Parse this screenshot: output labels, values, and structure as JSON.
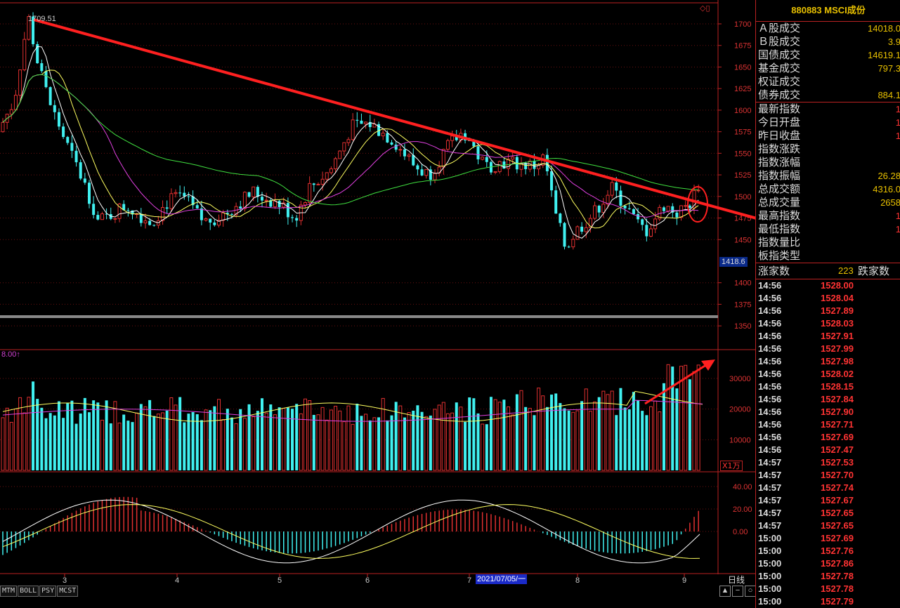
{
  "panel": {
    "title": "880883 MSCI成份",
    "rows1": [
      {
        "label": "Ａ股成交",
        "value": "14018.0"
      },
      {
        "label": "Ｂ股成交",
        "value": "3.9"
      },
      {
        "label": "国债成交",
        "value": "14619.1"
      },
      {
        "label": "基金成交",
        "value": "797.3"
      },
      {
        "label": "权证成交",
        "value": ""
      },
      {
        "label": "债券成交",
        "value": "884.1"
      }
    ],
    "rows2": [
      {
        "label": "最新指数",
        "value": "1"
      },
      {
        "label": "今日开盘",
        "value": "1"
      },
      {
        "label": "昨日收盘",
        "value": "1"
      },
      {
        "label": "指数涨跌",
        "value": ""
      },
      {
        "label": "指数涨幅",
        "value": ""
      },
      {
        "label": "指数振幅",
        "value": "26.28"
      },
      {
        "label": "总成交额",
        "value": "4316.0"
      },
      {
        "label": "总成交量",
        "value": "2658"
      },
      {
        "label": "最高指数",
        "value": "1"
      },
      {
        "label": "最低指数",
        "value": "1"
      },
      {
        "label": "指数量比",
        "value": ""
      },
      {
        "label": "板指类型",
        "value": ""
      }
    ],
    "updown": {
      "up_label": "涨家数",
      "mid_value": "223",
      "down_label": "跌家数"
    },
    "ticks": [
      {
        "time": "14:56",
        "price": "1528.00"
      },
      {
        "time": "14:56",
        "price": "1528.04"
      },
      {
        "time": "14:56",
        "price": "1527.89"
      },
      {
        "time": "14:56",
        "price": "1528.03"
      },
      {
        "time": "14:56",
        "price": "1527.91"
      },
      {
        "time": "14:56",
        "price": "1527.99"
      },
      {
        "time": "14:56",
        "price": "1527.98"
      },
      {
        "time": "14:56",
        "price": "1528.02"
      },
      {
        "time": "14:56",
        "price": "1528.15"
      },
      {
        "time": "14:56",
        "price": "1527.84"
      },
      {
        "time": "14:56",
        "price": "1527.90"
      },
      {
        "time": "14:56",
        "price": "1527.71"
      },
      {
        "time": "14:56",
        "price": "1527.69"
      },
      {
        "time": "14:56",
        "price": "1527.47"
      },
      {
        "time": "14:57",
        "price": "1527.53"
      },
      {
        "time": "14:57",
        "price": "1527.70"
      },
      {
        "time": "14:57",
        "price": "1527.74"
      },
      {
        "time": "14:57",
        "price": "1527.67"
      },
      {
        "time": "14:57",
        "price": "1527.65"
      },
      {
        "time": "14:57",
        "price": "1527.65"
      },
      {
        "time": "15:00",
        "price": "1527.69"
      },
      {
        "time": "15:00",
        "price": "1527.76"
      },
      {
        "time": "15:00",
        "price": "1527.86"
      },
      {
        "time": "15:00",
        "price": "1527.78"
      },
      {
        "time": "15:00",
        "price": "1527.78"
      },
      {
        "time": "15:00",
        "price": "1527.79"
      }
    ]
  },
  "main": {
    "peak_label": "1709.51",
    "current_price": "1418.6",
    "date_tag": "2021/07/05/一",
    "daily_label": "日线",
    "vol_top_label": "8.00↑",
    "vol_unit": "X1万",
    "price_axis": [
      "1700",
      "1675",
      "1650",
      "1625",
      "1600",
      "1575",
      "1550",
      "1525",
      "1500",
      "1475",
      "1450",
      "1400",
      "1375",
      "1350"
    ],
    "vol_axis": [
      "30000",
      "20000",
      "10000"
    ],
    "macd_axis": [
      "40.00",
      "20.00",
      "0.00"
    ],
    "x_axis": [
      "3",
      "4",
      "5",
      "6",
      "7",
      "8",
      "9"
    ]
  },
  "tabs": [
    "MTM",
    "BOLL",
    "PSY",
    "MCST"
  ],
  "controls": [
    "▲",
    "−",
    "○"
  ],
  "colors": {
    "up": "#e03030",
    "down": "#40f0f0",
    "ma5": "#ffffff",
    "ma10": "#ffff60",
    "ma20": "#e040e0",
    "ma60": "#40e040",
    "trend": "#ff2020"
  }
}
